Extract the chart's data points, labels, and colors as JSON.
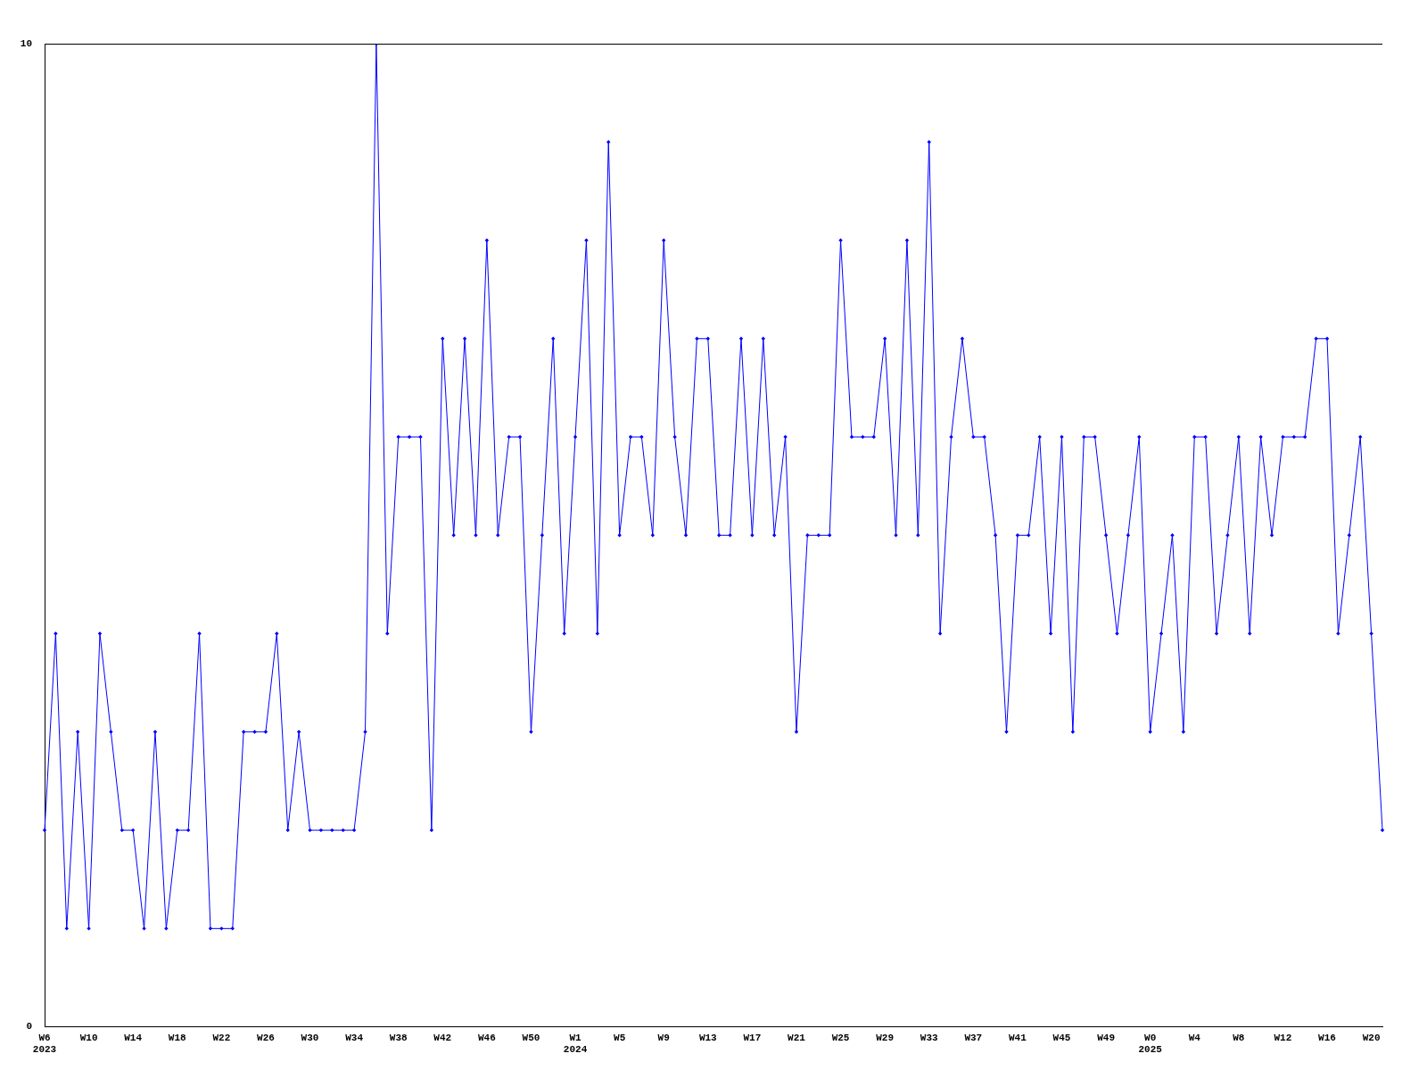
{
  "chart_data": {
    "type": "line",
    "categories": [
      "W6\n2023",
      null,
      null,
      null,
      "W10",
      null,
      null,
      null,
      "W14",
      null,
      null,
      null,
      "W18",
      null,
      null,
      null,
      "W22",
      null,
      null,
      null,
      "W26",
      null,
      null,
      null,
      "W30",
      null,
      null,
      null,
      "W34",
      null,
      null,
      null,
      "W38",
      null,
      null,
      null,
      "W42",
      null,
      null,
      null,
      "W46",
      null,
      null,
      null,
      "W50",
      null,
      null,
      null,
      "W1\n2024",
      null,
      null,
      null,
      "W5",
      null,
      null,
      null,
      "W9",
      null,
      null,
      null,
      "W13",
      null,
      null,
      null,
      "W17",
      null,
      null,
      null,
      "W21",
      null,
      null,
      null,
      "W25",
      null,
      null,
      null,
      "W29",
      null,
      null,
      null,
      "W33",
      null,
      null,
      null,
      "W37",
      null,
      null,
      null,
      "W41",
      null,
      null,
      null,
      "W45",
      null,
      null,
      null,
      "W49",
      null,
      null,
      null,
      "W0\n2025",
      null,
      null,
      null,
      "W4",
      null,
      null,
      null,
      "W8",
      null,
      null,
      null,
      "W12",
      null,
      null,
      null,
      "W16",
      null,
      null,
      null,
      "W20",
      null
    ],
    "series": [
      {
        "color": "#0000ff",
        "values": [
          2,
          4,
          1,
          3,
          1,
          4,
          3,
          2,
          2,
          1,
          3,
          1,
          2,
          2,
          4,
          1,
          1,
          1,
          3,
          3,
          3,
          4,
          2,
          3,
          2,
          2,
          2,
          2,
          2,
          3,
          10,
          4,
          6,
          6,
          6,
          2,
          7,
          5,
          7,
          5,
          8,
          5,
          6,
          6,
          3,
          5,
          7,
          4,
          6,
          8,
          4,
          9,
          5,
          6,
          6,
          5,
          8,
          6,
          5,
          7,
          7,
          5,
          5,
          7,
          5,
          7,
          5,
          6,
          3,
          5,
          5,
          5,
          8,
          6,
          6,
          6,
          7,
          5,
          8,
          5,
          9,
          4,
          6,
          7,
          6,
          6,
          5,
          3,
          5,
          5,
          6,
          4,
          6,
          3,
          6,
          6,
          5,
          4,
          5,
          6,
          3,
          4,
          5,
          3,
          6,
          6,
          4,
          5,
          6,
          4,
          6,
          5,
          6,
          6,
          6,
          7,
          7,
          4,
          5,
          6,
          4,
          2
        ]
      }
    ],
    "ylim": [
      0,
      10
    ],
    "yticks": [
      0,
      10
    ],
    "grid": false,
    "marker": "diamond"
  }
}
